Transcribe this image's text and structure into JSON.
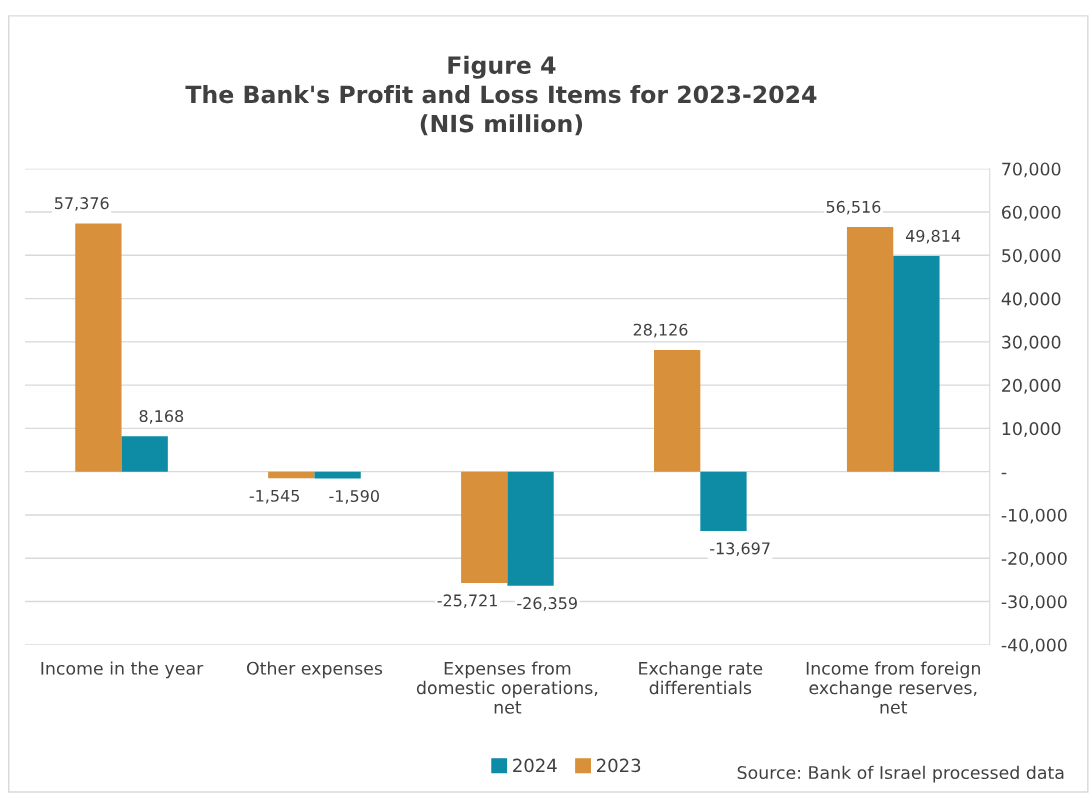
{
  "chart_data": {
    "type": "bar",
    "title": "Figure 4\nThe Bank's Profit and Loss Items for 2023-2024\n(NIS million)",
    "categories": [
      "Income in the year",
      "Other expenses",
      "Expenses from\ndomestic operations,\nnet",
      "Exchange rate\ndifferentials",
      "Income from foreign\nexchange reserves,\nnet"
    ],
    "series": [
      {
        "name": "2023",
        "color": "#d8903a",
        "values": [
          57376,
          -1545,
          -25721,
          28126,
          56516
        ],
        "value_labels": [
          "57,376",
          "-1,545",
          "-25,721",
          "28,126",
          "56,516"
        ]
      },
      {
        "name": "2024",
        "color": "#0e8ca6",
        "values": [
          8168,
          -1590,
          -26359,
          -13697,
          49814
        ],
        "value_labels": [
          "8,168",
          "-1,590",
          "-26,359",
          "-13,697",
          "49,814"
        ]
      }
    ],
    "ylim": [
      -40000,
      70000
    ],
    "yticks": [
      {
        "value": -40000,
        "label": "-40,000"
      },
      {
        "value": -30000,
        "label": "-30,000"
      },
      {
        "value": -20000,
        "label": "-20,000"
      },
      {
        "value": -10000,
        "label": "-10,000"
      },
      {
        "value": 0,
        "label": "-"
      },
      {
        "value": 10000,
        "label": "10,000"
      },
      {
        "value": 20000,
        "label": "20,000"
      },
      {
        "value": 30000,
        "label": "30,000"
      },
      {
        "value": 40000,
        "label": "40,000"
      },
      {
        "value": 50000,
        "label": "50,000"
      },
      {
        "value": 60000,
        "label": "60,000"
      },
      {
        "value": 70000,
        "label": "70,000"
      }
    ],
    "grid": "y",
    "legend": "bottom",
    "annotations": [
      "Source: Bank of Israel processed data"
    ]
  }
}
